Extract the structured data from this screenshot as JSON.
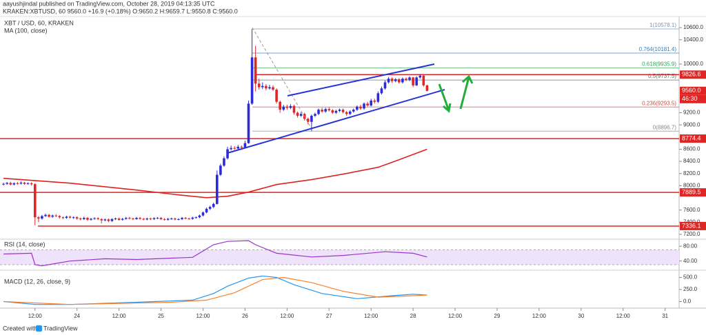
{
  "header": {
    "author_line": "aayushjindal published on TradingView.com, October 28, 2019 04:13:35 UTC",
    "symbol_line": "KRAKEN:XBTUSD, 60  9560.0  +16.9 (+0.18%)  O:9650.2 H:9659.7 L:9550.8 C:9560.0"
  },
  "footer": {
    "created": "Created with",
    "brand": "TradingView"
  },
  "chart_data": [
    {
      "type": "candlestick",
      "title": "XBT / USD, 60, KRAKEN",
      "up_color": "#2b2bd8",
      "down_color": "#e02525",
      "open": [
        8020,
        8030,
        8045,
        8020,
        8040,
        8035,
        8050,
        8030,
        8040,
        8025,
        7480,
        7460,
        7500,
        7520,
        7490,
        7510,
        7500,
        7480,
        7470,
        7490,
        7475,
        7480,
        7460,
        7450,
        7470,
        7440,
        7455,
        7465,
        7450,
        7430,
        7445,
        7420,
        7450,
        7460,
        7440,
        7455,
        7470,
        7460,
        7450,
        7470,
        7455,
        7445,
        7460,
        7450,
        7465,
        7470,
        7450,
        7440,
        7455,
        7460,
        7445,
        7450,
        7470,
        7460,
        7455,
        7475,
        7480,
        7510,
        7560,
        7620,
        7650,
        7700,
        8180,
        8330,
        8450,
        8600,
        8620,
        8610,
        8640,
        8630,
        8700,
        9350,
        10110,
        9680,
        9620,
        9640,
        9600,
        9620,
        9580,
        9380,
        9250,
        9300,
        9280,
        9310,
        9200,
        9150,
        9180,
        9100,
        9050,
        9150,
        9180,
        9250,
        9220,
        9260,
        9240,
        9200,
        9230,
        9250,
        9210,
        9180,
        9220,
        9250,
        9300,
        9270,
        9350,
        9320,
        9400,
        9380,
        9520,
        9600,
        9700,
        9760,
        9720,
        9750,
        9700,
        9760,
        9740,
        9780,
        9650,
        9780,
        9810,
        9650.2
      ],
      "high": [
        8050,
        8060,
        8065,
        8055,
        8060,
        8070,
        8065,
        8055,
        8055,
        8040,
        7500,
        7520,
        7540,
        7535,
        7525,
        7530,
        7515,
        7495,
        7505,
        7505,
        7495,
        7495,
        7475,
        7490,
        7485,
        7470,
        7480,
        7480,
        7465,
        7460,
        7460,
        7465,
        7475,
        7475,
        7470,
        7485,
        7485,
        7475,
        7485,
        7485,
        7470,
        7475,
        7475,
        7480,
        7485,
        7485,
        7465,
        7470,
        7475,
        7475,
        7465,
        7485,
        7485,
        7475,
        7490,
        7495,
        7525,
        7575,
        7640,
        7670,
        7720,
        8250,
        8360,
        8480,
        8640,
        8660,
        8650,
        8670,
        8660,
        8740,
        9400,
        10578.1,
        10300,
        9760,
        9700,
        9670,
        9660,
        9650,
        9600,
        9400,
        9330,
        9330,
        9340,
        9330,
        9220,
        9210,
        9200,
        9120,
        9170,
        9200,
        9270,
        9280,
        9280,
        9290,
        9260,
        9250,
        9270,
        9270,
        9230,
        9240,
        9270,
        9320,
        9330,
        9370,
        9380,
        9430,
        9430,
        9550,
        9630,
        9730,
        9790,
        9780,
        9770,
        9770,
        9780,
        9780,
        9800,
        9790,
        9800,
        9837,
        9820,
        9659.7
      ],
      "low": [
        8005,
        8015,
        8005,
        8005,
        8020,
        8020,
        8015,
        8015,
        8000,
        7350,
        7400,
        7440,
        7485,
        7475,
        7470,
        7485,
        7460,
        7450,
        7455,
        7460,
        7455,
        7440,
        7430,
        7435,
        7420,
        7425,
        7440,
        7435,
        7380,
        7415,
        7400,
        7405,
        7435,
        7425,
        7425,
        7440,
        7445,
        7435,
        7440,
        7440,
        7430,
        7430,
        7435,
        7435,
        7450,
        7435,
        7425,
        7425,
        7440,
        7430,
        7430,
        7435,
        7445,
        7440,
        7440,
        7460,
        7465,
        7495,
        7545,
        7600,
        7630,
        7690,
        8160,
        8310,
        8430,
        8580,
        8590,
        8590,
        8610,
        8615,
        8690,
        9330,
        9550,
        9580,
        9590,
        9570,
        9580,
        9560,
        9350,
        9200,
        9230,
        9250,
        9260,
        9170,
        9120,
        9130,
        9070,
        9010,
        8896.7,
        9130,
        9160,
        9200,
        9200,
        9220,
        9180,
        9180,
        9210,
        9190,
        9150,
        9160,
        9200,
        9230,
        9250,
        9250,
        9300,
        9300,
        9350,
        9360,
        9500,
        9580,
        9680,
        9690,
        9700,
        9680,
        9680,
        9720,
        9720,
        9620,
        9640,
        9760,
        9630,
        9550.8
      ],
      "close": [
        8030,
        8045,
        8020,
        8040,
        8035,
        8050,
        8030,
        8040,
        8025,
        7480,
        7460,
        7500,
        7520,
        7490,
        7510,
        7500,
        7480,
        7470,
        7490,
        7475,
        7480,
        7460,
        7450,
        7470,
        7440,
        7455,
        7465,
        7450,
        7430,
        7445,
        7420,
        7450,
        7460,
        7440,
        7455,
        7470,
        7460,
        7450,
        7470,
        7455,
        7445,
        7460,
        7450,
        7465,
        7470,
        7450,
        7440,
        7455,
        7460,
        7445,
        7450,
        7470,
        7460,
        7455,
        7475,
        7480,
        7510,
        7560,
        7620,
        7650,
        7700,
        8180,
        8330,
        8450,
        8600,
        8620,
        8610,
        8640,
        8630,
        8700,
        9350,
        10110,
        9680,
        9620,
        9640,
        9600,
        9620,
        9580,
        9380,
        9250,
        9300,
        9280,
        9310,
        9200,
        9150,
        9180,
        9100,
        9050,
        9150,
        9180,
        9250,
        9220,
        9260,
        9240,
        9200,
        9230,
        9250,
        9210,
        9180,
        9220,
        9250,
        9300,
        9270,
        9350,
        9320,
        9400,
        9380,
        9520,
        9600,
        9700,
        9760,
        9720,
        9750,
        9700,
        9760,
        9740,
        9780,
        9650,
        9780,
        9810,
        9650.2,
        9560
      ],
      "indicator": {
        "name": "MA (100, close)",
        "color": "#e0201f",
        "x": [
          0,
          19,
          38,
          50,
          58,
          64,
          70,
          78,
          88,
          97,
          107,
          112,
          121
        ],
        "values": [
          8121,
          8042,
          7928,
          7849,
          7803,
          7826,
          7894,
          8019,
          8099,
          8190,
          8303,
          8406,
          8600
        ]
      },
      "levels": [
        9826.6,
        8774.4,
        7889.5,
        7336.1
      ],
      "level_color": "#e02525",
      "fib_levels": [
        {
          "value": 10578.1,
          "label": "1(10578.1)",
          "color": "#7f93ad"
        },
        {
          "value": 10181.4,
          "label": "0.764(10181.4)",
          "color": "#2f7fc8"
        },
        {
          "value": 9935.9,
          "label": "0.618(9935.9)",
          "color": "#2ea35a"
        },
        {
          "value": 9737.5,
          "label": "0.5(9737.5)",
          "color": "#666666"
        },
        {
          "value": 9293.5,
          "label": "0.236(9293.5)",
          "color": "#d9453a"
        },
        {
          "value": 8896.7,
          "label": "0(8896.7)",
          "color": "#888888"
        }
      ],
      "last_price": {
        "value": 9560,
        "label": "9560.0"
      },
      "countdown": "46:30",
      "xlim": [
        -1,
        193
      ],
      "xticks": [
        {
          "value": 9,
          "label": "12:00"
        },
        {
          "value": 21,
          "label": "24"
        },
        {
          "value": 33,
          "label": "12:00"
        },
        {
          "value": 45,
          "label": "25"
        },
        {
          "value": 57,
          "label": "12:00"
        },
        {
          "value": 69,
          "label": "26"
        },
        {
          "value": 81,
          "label": "12:00"
        },
        {
          "value": 93,
          "label": "27"
        },
        {
          "value": 105,
          "label": "12:00"
        },
        {
          "value": 117,
          "label": "28"
        },
        {
          "value": 129,
          "label": "12:00"
        },
        {
          "value": 141,
          "label": "29"
        },
        {
          "value": 153,
          "label": "12:00"
        },
        {
          "value": 165,
          "label": "30"
        },
        {
          "value": 177,
          "label": "12:00"
        },
        {
          "value": 189,
          "label": "31"
        }
      ],
      "ylim": [
        7120,
        10714
      ],
      "yticks": [
        {
          "value": 10600,
          "label": "10600.0"
        },
        {
          "value": 10400,
          "label": "10400.0"
        },
        {
          "value": 10000,
          "label": "10000.0"
        },
        {
          "value": 9200,
          "label": "9200.0"
        },
        {
          "value": 9000,
          "label": "9000.0"
        },
        {
          "value": 8600,
          "label": "8600.0"
        },
        {
          "value": 8400,
          "label": "8400.0"
        },
        {
          "value": 8200,
          "label": "8200.0"
        },
        {
          "value": 8000,
          "label": "8000.0"
        },
        {
          "value": 7600,
          "label": "7600.0"
        },
        {
          "value": 7400,
          "label": "7400.0"
        },
        {
          "value": 7200,
          "label": "7200.0"
        }
      ]
    },
    {
      "type": "line",
      "title": "RSI (14, close)",
      "band": [
        30,
        70
      ],
      "band_color": "#efe2fb",
      "series": [
        {
          "color": "#9932cc",
          "x": [
            0,
            8,
            9,
            11,
            19,
            29,
            38,
            54,
            60,
            64,
            70,
            72,
            78,
            88,
            97,
            109,
            117,
            121
          ],
          "values": [
            59,
            61,
            30,
            27,
            40,
            46,
            44,
            50,
            84,
            93,
            95,
            84,
            61,
            51,
            55,
            65,
            61,
            51
          ]
        }
      ],
      "ylim": [
        17,
        99
      ],
      "yticks": [
        {
          "value": 80,
          "label": "80.00"
        },
        {
          "value": 40,
          "label": "40.00"
        }
      ]
    },
    {
      "type": "line",
      "title": "MACD (12, 26, close, 9)",
      "series": [
        {
          "color": "#2196f3",
          "x": [
            0,
            9,
            19,
            38,
            54,
            60,
            64,
            70,
            74,
            78,
            83,
            91,
            101,
            111,
            117,
            121
          ],
          "values": [
            0,
            -60,
            -60,
            -15,
            30,
            167,
            318,
            485,
            530,
            500,
            348,
            167,
            60,
            121,
            152,
            136
          ]
        },
        {
          "color": "#ff7f27",
          "x": [
            0,
            19,
            48,
            58,
            66,
            74,
            80,
            88,
            97,
            107,
            117,
            121
          ],
          "values": [
            0,
            -60,
            -15,
            30,
            182,
            455,
            500,
            394,
            212,
            91,
            121,
            136
          ]
        }
      ],
      "ylim": [
        -136,
        621
      ],
      "yticks": [
        {
          "value": 500,
          "label": "500.0"
        },
        {
          "value": 250,
          "label": "250.0"
        },
        {
          "value": 0,
          "label": "0.0"
        }
      ]
    }
  ]
}
